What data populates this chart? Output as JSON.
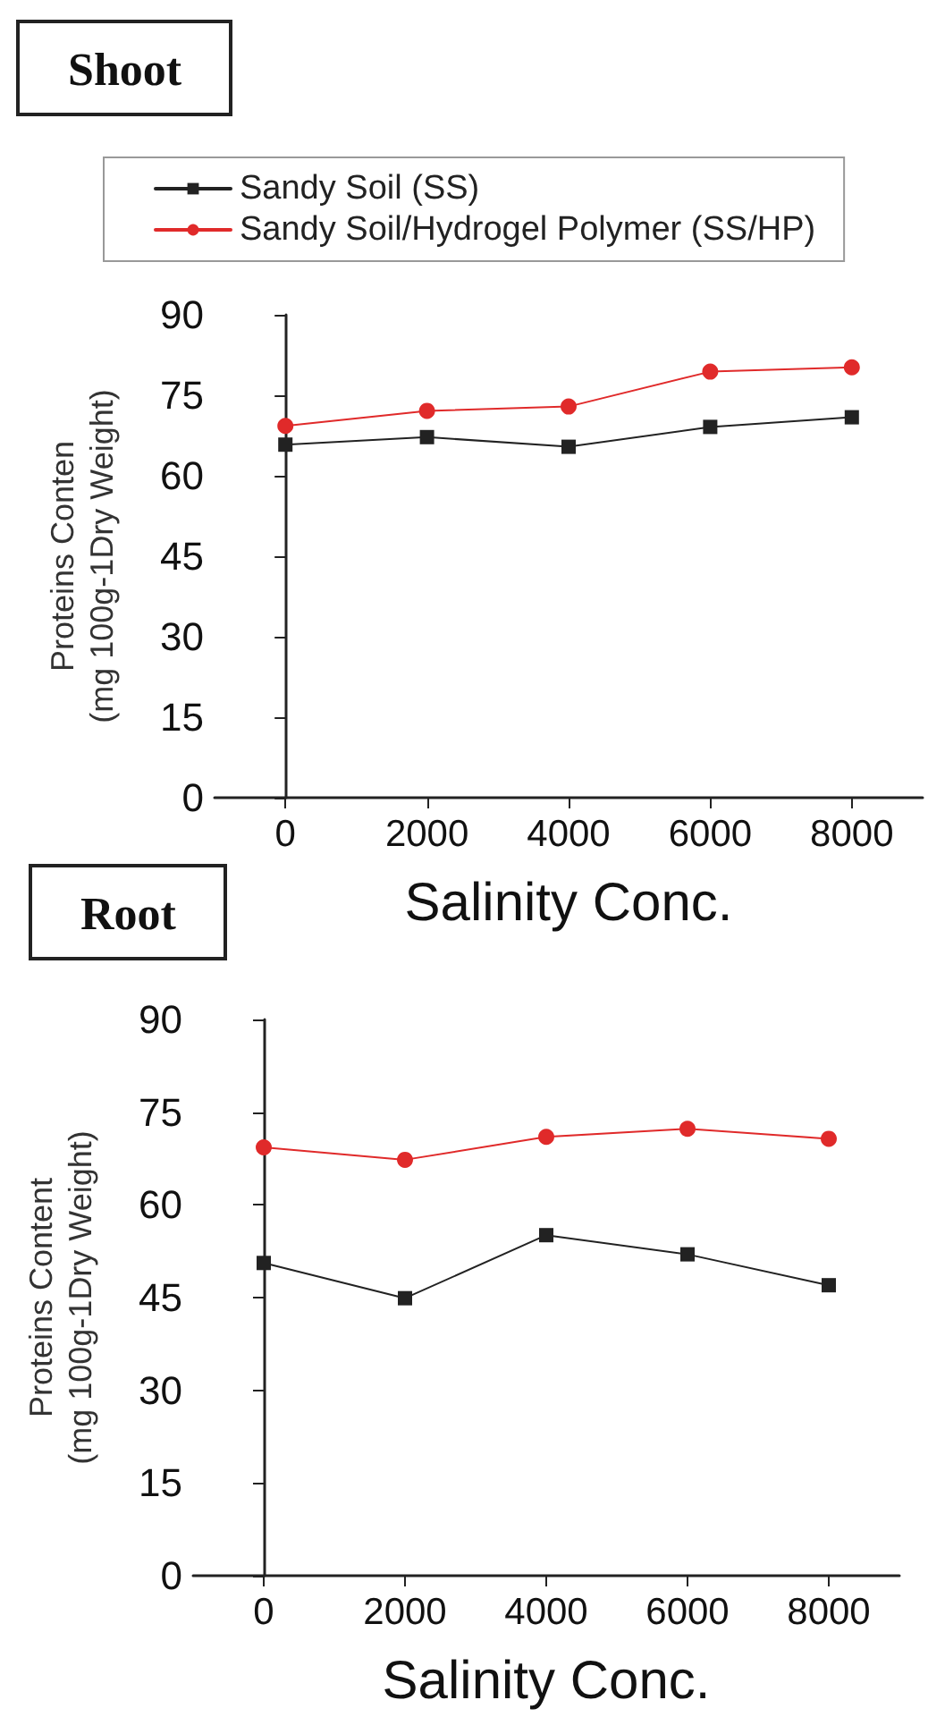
{
  "chart_data": [
    {
      "type": "line",
      "title": "Shoot",
      "xlabel": "Salinity Conc.",
      "ylabel": "Proteins Conten\n(mg 100g-1Dry Weight)",
      "x": [
        0,
        2000,
        4000,
        6000,
        8000
      ],
      "series": [
        {
          "name": "Sandy Soil (SS)",
          "color": "#222222",
          "marker": "square",
          "values": [
            65.8,
            67.2,
            65.4,
            69.1,
            70.9
          ]
        },
        {
          "name": "Sandy Soil/Hydrogel Polymer (SS/HP)",
          "color": "#e02a2a",
          "marker": "circle",
          "values": [
            69.3,
            72.1,
            72.9,
            79.4,
            80.2
          ]
        }
      ],
      "xlim": [
        -1000,
        9000
      ],
      "xticks": [
        0,
        2000,
        4000,
        6000,
        8000
      ],
      "ylim": [
        0,
        90
      ],
      "yticks": [
        0,
        15,
        30,
        45,
        60,
        75,
        90
      ],
      "legend": "top",
      "line_style": "solid"
    },
    {
      "type": "line",
      "title": "Root",
      "xlabel": "Salinity Conc.",
      "ylabel": "Proteins Content\n(mg 100g-1Dry Weight)",
      "x": [
        0,
        2000,
        4000,
        6000,
        8000
      ],
      "series": [
        {
          "color": "#222222",
          "marker": "square",
          "values": [
            50.6,
            44.9,
            55.1,
            52.0,
            47.0
          ]
        },
        {
          "color": "#e02a2a",
          "marker": "circle",
          "values": [
            69.3,
            67.3,
            71.0,
            72.3,
            70.7
          ]
        }
      ],
      "xlim": [
        -1000,
        9000
      ],
      "xticks": [
        0,
        2000,
        4000,
        6000,
        8000
      ],
      "ylim": [
        0,
        90
      ],
      "yticks": [
        0,
        15,
        30,
        45,
        60,
        75,
        90
      ],
      "line_style": "solid"
    }
  ]
}
